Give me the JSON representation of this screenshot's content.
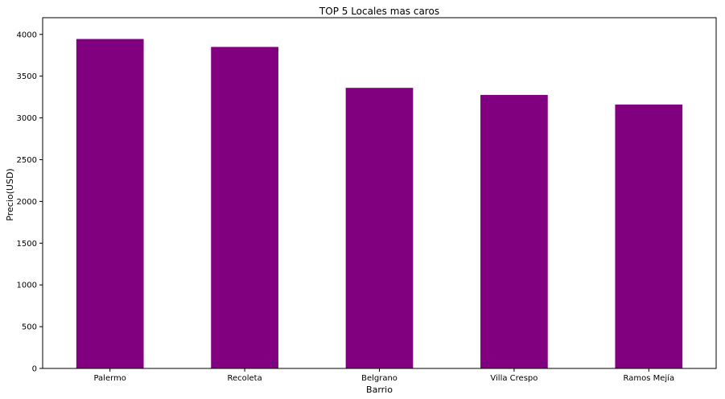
{
  "chart_data": {
    "type": "bar",
    "title": "TOP 5 Locales mas caros",
    "xlabel": "Barrio",
    "ylabel": "Precio(USD)",
    "categories": [
      "Palermo",
      "Recoleta",
      "Belgrano",
      "Villa Crespo",
      "Ramos Mejía"
    ],
    "values": [
      3945,
      3850,
      3360,
      3275,
      3160
    ],
    "ylim": [
      0,
      4200
    ],
    "yticks": [
      0,
      500,
      1000,
      1500,
      2000,
      2500,
      3000,
      3500,
      4000
    ],
    "ytick_labels": [
      "0",
      "500",
      "1000",
      "1500",
      "2000",
      "2500",
      "3000",
      "3500",
      "4000"
    ],
    "bar_color": "#800080",
    "grid": false,
    "legend": "none"
  }
}
